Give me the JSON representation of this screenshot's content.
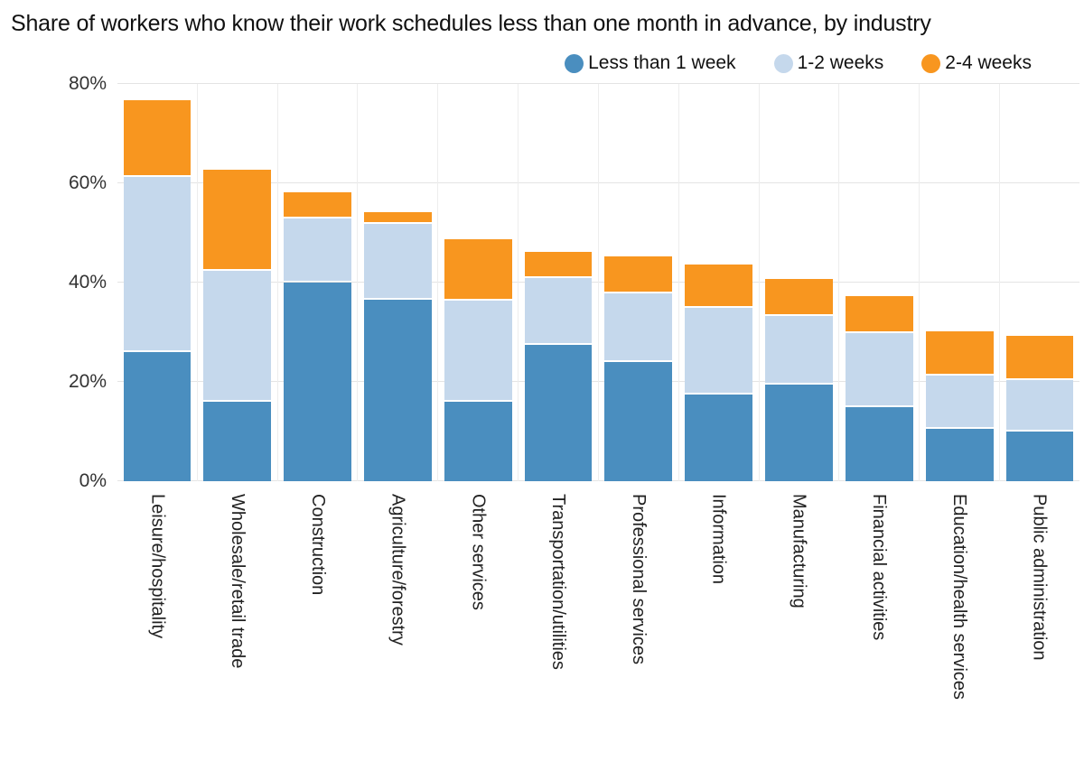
{
  "chart_data": {
    "type": "bar",
    "stacked": true,
    "title": "Share of workers who know their work schedules less than one month in advance, by industry",
    "categories": [
      "Leisure/hospitality",
      "Wholesale/retail trade",
      "Construction",
      "Agriculture/forestry",
      "Other services",
      "Transportation/utilities",
      "Professional services",
      "Information",
      "Manufacturing",
      "Financial activities",
      "Education/health services",
      "Public administration"
    ],
    "series": [
      {
        "name": "Less than 1 week",
        "color": "#4a8ebf",
        "values": [
          26,
          16,
          40,
          36.5,
          16,
          27.5,
          24,
          17.5,
          19.5,
          15,
          10.5,
          10
        ]
      },
      {
        "name": "1-2 weeks",
        "color": "#c5d8ec",
        "values": [
          35,
          26,
          12.5,
          15,
          20,
          13,
          13.5,
          17,
          13.5,
          14.5,
          10.5,
          10
        ]
      },
      {
        "name": "2-4 weeks",
        "color": "#f8961f",
        "values": [
          15,
          20,
          5,
          2,
          12,
          5,
          7,
          8.5,
          7,
          7,
          8.5,
          8.5
        ]
      }
    ],
    "ylabel": "",
    "xlabel": "",
    "ylim": [
      0,
      80
    ],
    "yticks": [
      "0%",
      "20%",
      "40%",
      "60%",
      "80%"
    ],
    "ytick_values": [
      0,
      20,
      40,
      60,
      80
    ],
    "grid": true,
    "legend_position": "top",
    "gridline_color": "#e4e4e4"
  }
}
